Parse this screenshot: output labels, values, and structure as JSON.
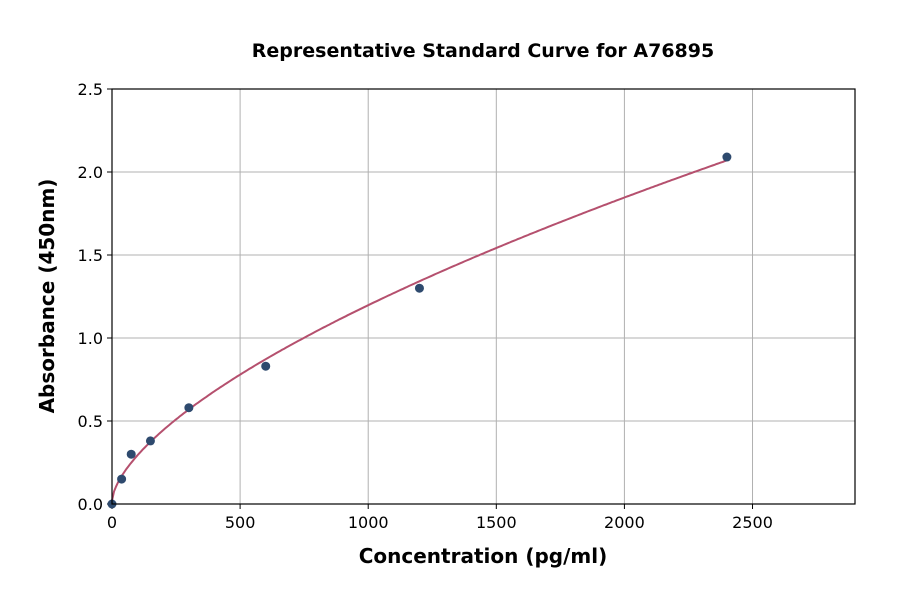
{
  "chart_data": {
    "type": "scatter",
    "title": "Representative Standard Curve for A76895",
    "xlabel": "Concentration (pg/ml)",
    "ylabel": "Absorbance (450nm)",
    "xlim": [
      0,
      2900
    ],
    "ylim": [
      0,
      2.5
    ],
    "xticks": [
      0,
      500,
      1000,
      1500,
      2000,
      2500
    ],
    "yticks": [
      "0.0",
      "0.5",
      "1.0",
      "1.5",
      "2.0",
      "2.5"
    ],
    "grid": true,
    "points": [
      {
        "x": 0,
        "y": 0.0
      },
      {
        "x": 37.5,
        "y": 0.15
      },
      {
        "x": 75,
        "y": 0.3
      },
      {
        "x": 150,
        "y": 0.38
      },
      {
        "x": 300,
        "y": 0.58
      },
      {
        "x": 600,
        "y": 0.83
      },
      {
        "x": 1200,
        "y": 1.3
      },
      {
        "x": 2400,
        "y": 2.09
      }
    ],
    "fit_curve": {
      "model": "power",
      "offset": 0.02,
      "a": 0.01486,
      "b": 0.633,
      "x_range": [
        0,
        2400
      ]
    },
    "colors": {
      "points": "#2e4a6e",
      "curve": "#b5506e",
      "grid": "#b0b0b0"
    }
  }
}
